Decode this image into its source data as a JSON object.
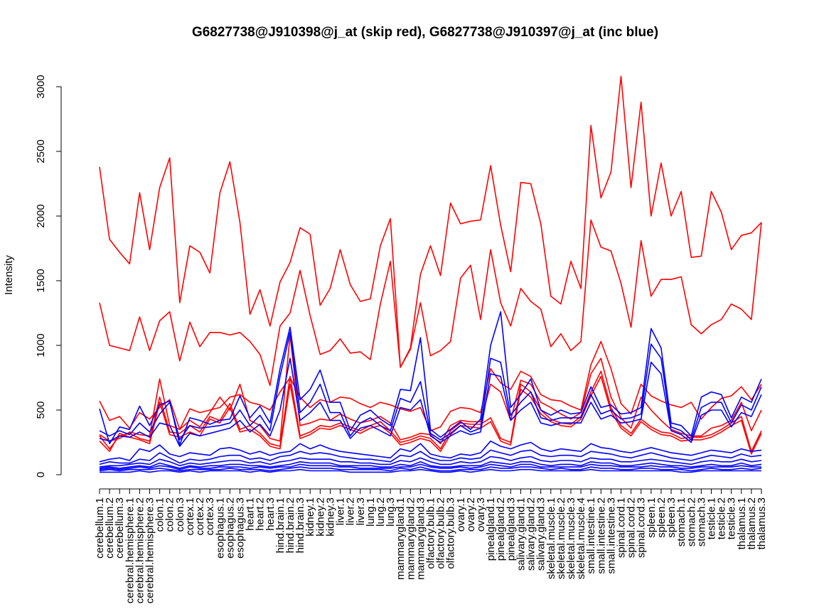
{
  "chart_data": {
    "type": "line",
    "title": "G6827738@J910398@j_at (skip red), G6827738@J910397@j_at (inc blue)",
    "xlabel": "",
    "ylabel": "Intensity",
    "ylim": [
      0,
      3000
    ],
    "yticks": [
      0,
      500,
      1000,
      1500,
      2000,
      2500,
      3000
    ],
    "grid": false,
    "legend": "none",
    "colors": {
      "red": "#ff0000",
      "blue": "#0000ff"
    },
    "categories": [
      "cerebellum.1",
      "cerebellum.2",
      "cerebellum.3",
      "cerebral.hemisphere.1",
      "cerebral.hemisphere.2",
      "cerebral.hemisphere.3",
      "colon.1",
      "colon.2",
      "colon.3",
      "cortex.1",
      "cortex.2",
      "cortex.3",
      "esophagus.1",
      "esophagus.2",
      "esophagus.3",
      "heart.1",
      "heart.2",
      "heart.3",
      "hind.brain.1",
      "hind.brain.2",
      "hind.brain.3",
      "kidney.1",
      "kidney.2",
      "kidney.3",
      "liver.1",
      "liver.2",
      "liver.3",
      "lung.1",
      "lung.2",
      "lung.3",
      "mammarygland.1",
      "mammarygland.2",
      "mammarygland.3",
      "olfactory.bulb.1",
      "olfactory.bulb.2",
      "olfactory.bulb.3",
      "ovary.1",
      "ovary.2",
      "ovary.3",
      "pinealgland.1",
      "pinealgland.2",
      "pinealgland.3",
      "salivary.gland.1",
      "salivary.gland.2",
      "salivary.gland.3",
      "skeletal.muscle.1",
      "skeletal.muscle.2",
      "skeletal.muscle.3",
      "skeletal.muscle.4",
      "small.intestine.1",
      "small.intestine.2",
      "small.intestine.3",
      "spinal.cord.1",
      "spinal.cord.2",
      "spinal.cord.3",
      "spleen.1",
      "spleen.2",
      "spleen.3",
      "stomach.1",
      "stomach.2",
      "stomach.3",
      "testicle.1",
      "testicle.2",
      "testicle.3",
      "thalamus.1",
      "thalamus.2",
      "thalamus.3"
    ],
    "series": [
      {
        "color": "red",
        "values": [
          2380,
          1820,
          1720,
          1630,
          2180,
          1740,
          2220,
          2450,
          1330,
          1770,
          1720,
          1560,
          2180,
          2420,
          1950,
          1240,
          1430,
          1150,
          1490,
          1640,
          1910,
          1860,
          1310,
          1440,
          1740,
          1470,
          1340,
          1360,
          1770,
          1980,
          830,
          980,
          1550,
          1770,
          1540,
          2100,
          1940,
          1960,
          1970,
          2390,
          1930,
          1570,
          2260,
          2250,
          1940,
          1380,
          1320,
          1650,
          1440,
          2700,
          2140,
          2340,
          3080,
          2220,
          2880,
          2000,
          2410,
          2000,
          2190,
          1680,
          1690,
          2190,
          2030,
          1740,
          1850,
          1870,
          1950
        ]
      },
      {
        "color": "red",
        "values": [
          1330,
          1000,
          980,
          960,
          1220,
          960,
          1190,
          1260,
          880,
          1180,
          990,
          1100,
          1100,
          1080,
          1100,
          1030,
          930,
          690,
          1150,
          1250,
          1580,
          1230,
          930,
          960,
          1050,
          940,
          950,
          890,
          1320,
          1650,
          830,
          970,
          1330,
          920,
          960,
          1030,
          1520,
          1620,
          1200,
          1740,
          1330,
          1150,
          1440,
          1340,
          1280,
          990,
          1090,
          960,
          1030,
          1970,
          1760,
          1730,
          1480,
          1140,
          1810,
          1380,
          1510,
          1510,
          1530,
          1160,
          1090,
          1160,
          1200,
          1320,
          1280,
          1200,
          1950
        ]
      },
      {
        "color": "red",
        "values": [
          570,
          420,
          450,
          360,
          480,
          430,
          520,
          580,
          350,
          510,
          480,
          500,
          520,
          600,
          620,
          560,
          540,
          500,
          640,
          750,
          600,
          520,
          580,
          560,
          600,
          590,
          550,
          520,
          560,
          540,
          510,
          490,
          520,
          340,
          370,
          490,
          520,
          510,
          480,
          820,
          710,
          660,
          800,
          760,
          620,
          580,
          570,
          530,
          500,
          850,
          1030,
          820,
          550,
          470,
          700,
          610,
          570,
          540,
          520,
          560,
          430,
          520,
          590,
          610,
          680,
          580,
          700
        ]
      },
      {
        "color": "red",
        "values": [
          300,
          200,
          300,
          320,
          280,
          260,
          600,
          330,
          320,
          380,
          330,
          450,
          420,
          550,
          350,
          380,
          320,
          240,
          220,
          760,
          300,
          330,
          380,
          370,
          400,
          370,
          340,
          380,
          410,
          340,
          250,
          270,
          300,
          280,
          200,
          340,
          400,
          390,
          390,
          440,
          280,
          250,
          700,
          640,
          500,
          430,
          400,
          390,
          450,
          640,
          800,
          520,
          380,
          320,
          430,
          370,
          330,
          320,
          280,
          290,
          290,
          310,
          350,
          400,
          450,
          180,
          340
        ]
      },
      {
        "color": "red",
        "values": [
          260,
          180,
          320,
          290,
          270,
          240,
          560,
          310,
          290,
          330,
          300,
          430,
          400,
          520,
          330,
          350,
          300,
          220,
          200,
          700,
          280,
          310,
          360,
          350,
          380,
          350,
          320,
          360,
          380,
          320,
          230,
          250,
          280,
          260,
          180,
          310,
          380,
          370,
          360,
          410,
          260,
          230,
          660,
          600,
          470,
          410,
          380,
          370,
          430,
          610,
          760,
          490,
          360,
          300,
          410,
          350,
          310,
          300,
          260,
          270,
          270,
          290,
          330,
          380,
          420,
          160,
          320
        ]
      },
      {
        "color": "red",
        "values": [
          310,
          260,
          280,
          330,
          310,
          300,
          740,
          380,
          350,
          420,
          370,
          480,
          600,
          500,
          700,
          420,
          380,
          280,
          260,
          1080,
          380,
          400,
          430,
          420,
          470,
          430,
          400,
          420,
          450,
          400,
          270,
          290,
          320,
          310,
          240,
          380,
          420,
          410,
          410,
          700,
          640,
          420,
          730,
          700,
          560,
          520,
          470,
          430,
          480,
          780,
          900,
          600,
          440,
          360,
          600,
          500,
          420,
          350,
          320,
          300,
          300,
          360,
          380,
          420,
          560,
          340,
          500
        ]
      },
      {
        "color": "blue",
        "values": [
          510,
          240,
          370,
          350,
          530,
          380,
          540,
          570,
          230,
          440,
          420,
          390,
          420,
          430,
          610,
          440,
          530,
          400,
          820,
          1140,
          580,
          660,
          810,
          560,
          560,
          340,
          460,
          500,
          430,
          380,
          660,
          650,
          1060,
          350,
          290,
          350,
          410,
          350,
          430,
          1000,
          1260,
          520,
          620,
          740,
          500,
          460,
          500,
          470,
          480,
          680,
          520,
          540,
          470,
          480,
          520,
          1130,
          980,
          400,
          380,
          300,
          600,
          640,
          620,
          440,
          600,
          560,
          740
        ]
      },
      {
        "color": "blue",
        "values": [
          340,
          300,
          340,
          310,
          400,
          330,
          470,
          560,
          270,
          380,
          360,
          370,
          380,
          400,
          500,
          380,
          460,
          340,
          760,
          1100,
          480,
          560,
          700,
          480,
          480,
          300,
          400,
          440,
          380,
          340,
          590,
          560,
          720,
          320,
          270,
          320,
          380,
          330,
          360,
          900,
          870,
          460,
          560,
          640,
          440,
          420,
          440,
          440,
          440,
          620,
          470,
          500,
          430,
          440,
          470,
          1010,
          900,
          370,
          340,
          270,
          520,
          560,
          560,
          400,
          540,
          500,
          680
        ]
      },
      {
        "color": "blue",
        "values": [
          280,
          260,
          300,
          290,
          330,
          290,
          400,
          380,
          220,
          320,
          300,
          320,
          340,
          360,
          420,
          330,
          390,
          300,
          500,
          900,
          420,
          480,
          560,
          420,
          420,
          280,
          360,
          380,
          340,
          300,
          520,
          500,
          580,
          300,
          250,
          300,
          340,
          310,
          330,
          780,
          760,
          420,
          500,
          560,
          400,
          380,
          400,
          400,
          400,
          560,
          430,
          460,
          400,
          410,
          430,
          870,
          780,
          340,
          310,
          250,
          460,
          500,
          500,
          370,
          480,
          450,
          620
        ]
      },
      {
        "color": "blue",
        "values": [
          100,
          120,
          130,
          110,
          200,
          180,
          230,
          160,
          140,
          170,
          160,
          150,
          200,
          210,
          190,
          160,
          180,
          150,
          170,
          180,
          240,
          200,
          230,
          200,
          180,
          170,
          160,
          150,
          140,
          130,
          200,
          180,
          240,
          160,
          140,
          130,
          160,
          150,
          170,
          260,
          220,
          200,
          230,
          250,
          200,
          180,
          200,
          190,
          180,
          240,
          210,
          200,
          180,
          170,
          190,
          210,
          190,
          170,
          160,
          150,
          170,
          190,
          180,
          170,
          200,
          180,
          190
        ]
      },
      {
        "color": "blue",
        "values": [
          80,
          100,
          90,
          90,
          120,
          110,
          170,
          130,
          90,
          120,
          110,
          120,
          140,
          150,
          150,
          120,
          130,
          110,
          140,
          150,
          180,
          160,
          170,
          160,
          140,
          130,
          120,
          120,
          110,
          100,
          150,
          140,
          180,
          130,
          110,
          110,
          130,
          120,
          130,
          190,
          170,
          150,
          180,
          190,
          150,
          140,
          150,
          150,
          140,
          180,
          170,
          160,
          140,
          130,
          150,
          170,
          150,
          130,
          120,
          110,
          130,
          150,
          140,
          130,
          160,
          140,
          150
        ]
      },
      {
        "color": "blue",
        "values": [
          60,
          70,
          70,
          80,
          90,
          80,
          120,
          100,
          70,
          90,
          80,
          90,
          100,
          110,
          110,
          90,
          100,
          80,
          100,
          110,
          130,
          120,
          120,
          120,
          100,
          100,
          90,
          90,
          80,
          80,
          110,
          100,
          130,
          100,
          80,
          80,
          100,
          90,
          100,
          140,
          130,
          110,
          130,
          140,
          110,
          100,
          110,
          110,
          100,
          130,
          120,
          120,
          100,
          100,
          110,
          120,
          110,
          100,
          90,
          80,
          100,
          110,
          100,
          100,
          120,
          100,
          110
        ]
      },
      {
        "color": "blue",
        "values": [
          50,
          60,
          50,
          60,
          70,
          60,
          90,
          70,
          50,
          70,
          60,
          70,
          70,
          80,
          80,
          70,
          70,
          60,
          70,
          80,
          100,
          90,
          90,
          90,
          70,
          70,
          70,
          70,
          60,
          60,
          80,
          70,
          100,
          70,
          60,
          60,
          70,
          70,
          70,
          100,
          90,
          80,
          100,
          100,
          80,
          70,
          80,
          80,
          70,
          100,
          90,
          90,
          70,
          70,
          80,
          90,
          80,
          70,
          70,
          60,
          70,
          80,
          70,
          70,
          90,
          70,
          80
        ]
      },
      {
        "color": "blue",
        "values": [
          40,
          50,
          40,
          50,
          60,
          50,
          70,
          60,
          40,
          60,
          50,
          50,
          60,
          60,
          60,
          50,
          60,
          50,
          60,
          60,
          80,
          70,
          70,
          70,
          60,
          60,
          50,
          50,
          50,
          50,
          60,
          60,
          80,
          60,
          50,
          50,
          60,
          50,
          60,
          80,
          70,
          60,
          80,
          80,
          60,
          60,
          60,
          60,
          60,
          80,
          70,
          70,
          60,
          60,
          60,
          70,
          60,
          60,
          50,
          50,
          60,
          60,
          60,
          60,
          70,
          60,
          60
        ]
      },
      {
        "color": "blue",
        "values": [
          30,
          40,
          30,
          40,
          40,
          40,
          50,
          40,
          30,
          40,
          40,
          40,
          40,
          50,
          40,
          40,
          40,
          30,
          40,
          50,
          60,
          50,
          50,
          50,
          40,
          40,
          40,
          40,
          40,
          30,
          50,
          40,
          60,
          40,
          30,
          30,
          40,
          40,
          40,
          60,
          50,
          50,
          60,
          60,
          50,
          40,
          50,
          40,
          40,
          60,
          50,
          50,
          40,
          40,
          50,
          50,
          40,
          40,
          40,
          30,
          40,
          50,
          40,
          40,
          50,
          40,
          50
        ]
      },
      {
        "color": "blue",
        "values": [
          20,
          20,
          20,
          20,
          30,
          20,
          30,
          30,
          20,
          30,
          20,
          30,
          30,
          30,
          30,
          20,
          30,
          20,
          30,
          30,
          40,
          30,
          30,
          30,
          30,
          20,
          20,
          20,
          20,
          20,
          30,
          30,
          40,
          30,
          20,
          20,
          30,
          20,
          30,
          40,
          30,
          30,
          40,
          40,
          30,
          30,
          30,
          30,
          30,
          40,
          30,
          30,
          30,
          30,
          30,
          30,
          30,
          30,
          20,
          20,
          30,
          30,
          30,
          30,
          30,
          30,
          30
        ]
      }
    ]
  }
}
